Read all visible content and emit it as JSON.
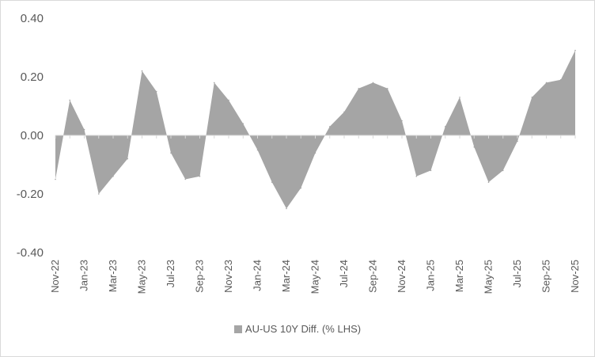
{
  "chart_data": {
    "type": "area",
    "series": [
      {
        "name": "AU-US 10Y Diff. (% LHS)",
        "color": "#a5a5a5",
        "x": [
          "2022-11",
          "2022-12",
          "2023-01",
          "2023-02",
          "2023-03",
          "2023-04",
          "2023-05",
          "2023-06",
          "2023-07",
          "2023-08",
          "2023-09",
          "2023-10",
          "2023-11",
          "2023-12",
          "2024-01",
          "2024-02",
          "2024-03",
          "2024-04",
          "2024-05",
          "2024-06",
          "2024-07",
          "2024-08",
          "2024-09",
          "2024-10",
          "2024-11",
          "2024-12",
          "2025-01",
          "2025-02",
          "2025-03",
          "2025-04",
          "2025-05",
          "2025-06",
          "2025-07",
          "2025-08",
          "2025-09",
          "2025-10",
          "2025-11"
        ],
        "values": [
          -0.15,
          0.12,
          0.02,
          -0.2,
          -0.14,
          -0.08,
          0.22,
          0.15,
          -0.06,
          -0.15,
          -0.14,
          0.18,
          0.12,
          0.04,
          -0.05,
          -0.16,
          -0.25,
          -0.18,
          -0.06,
          0.03,
          0.08,
          0.16,
          0.18,
          0.16,
          0.05,
          -0.14,
          -0.12,
          0.03,
          0.13,
          -0.04,
          -0.16,
          -0.12,
          -0.02,
          0.13,
          0.18,
          0.19,
          0.29
        ]
      }
    ],
    "ylim": [
      -0.4,
      0.4
    ],
    "yticks": [
      "0.40",
      "0.20",
      "0.00",
      "-0.20",
      "-0.40"
    ],
    "xticks": [
      "Nov-22",
      "Jan-23",
      "Mar-23",
      "May-23",
      "Jul-23",
      "Sep-23",
      "Nov-23",
      "Jan-24",
      "Mar-24",
      "May-24",
      "Jul-24",
      "Sep-24",
      "Nov-24",
      "Jan-25",
      "Mar-25",
      "May-25",
      "Jul-25",
      "Sep-25",
      "Nov-25"
    ],
    "grid": false,
    "legend_position": "bottom",
    "xlabel": "",
    "ylabel": ""
  }
}
